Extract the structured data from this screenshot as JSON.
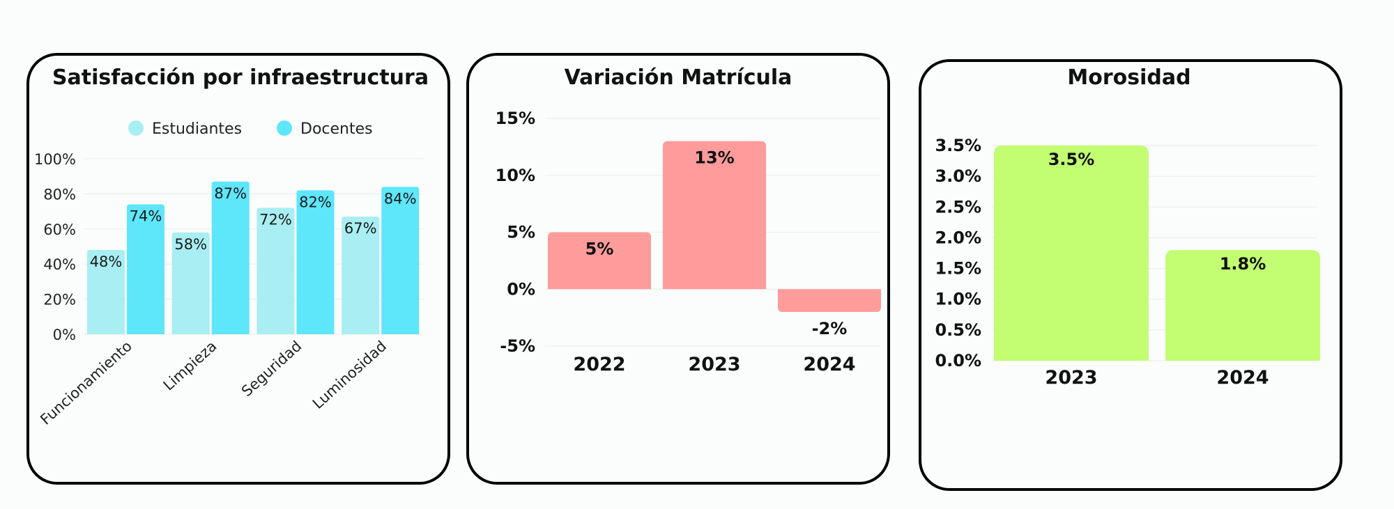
{
  "colors": {
    "estudiantes": "#a8eef2",
    "docentes": "#5ee6fb",
    "matricula": "#fe9b9b",
    "morosidad": "#c2fd72"
  },
  "chart_data": [
    {
      "type": "bar",
      "title": "Satisfacción por infraestructura",
      "categories": [
        "Funcionamiento",
        "Limpieza",
        "Seguridad",
        "Luminosidad"
      ],
      "series": [
        {
          "name": "Estudiantes",
          "values": [
            48,
            58,
            72,
            67
          ],
          "labels": [
            "48%",
            "58%",
            "72%",
            "67%"
          ]
        },
        {
          "name": "Docentes",
          "values": [
            74,
            87,
            82,
            84
          ],
          "labels": [
            "74%",
            "87%",
            "82%",
            "84%"
          ]
        }
      ],
      "ylim": [
        0,
        100
      ],
      "yticks": [
        "0%",
        "20%",
        "40%",
        "60%",
        "80%",
        "100%"
      ],
      "legend": "top",
      "grid": true
    },
    {
      "type": "bar",
      "title": "Variación Matrícula",
      "categories": [
        "2022",
        "2023",
        "2024"
      ],
      "values": [
        5,
        13,
        -2
      ],
      "labels": [
        "5%",
        "13%",
        "-2%"
      ],
      "ylim": [
        -5,
        15
      ],
      "yticks": [
        "-5%",
        "0%",
        "5%",
        "10%",
        "15%"
      ],
      "grid": true
    },
    {
      "type": "bar",
      "title": "Morosidad",
      "categories": [
        "2023",
        "2024"
      ],
      "values": [
        3.5,
        1.8
      ],
      "labels": [
        "3.5%",
        "1.8%"
      ],
      "ylim": [
        0,
        3.5
      ],
      "yticks": [
        "0.0%",
        "0.5%",
        "1.0%",
        "1.5%",
        "2.0%",
        "2.5%",
        "3.0%",
        "3.5%"
      ],
      "grid": true
    }
  ]
}
